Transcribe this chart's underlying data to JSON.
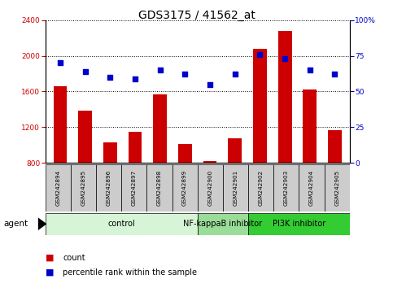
{
  "title": "GDS3175 / 41562_at",
  "samples": [
    "GSM242894",
    "GSM242895",
    "GSM242896",
    "GSM242897",
    "GSM242898",
    "GSM242899",
    "GSM242900",
    "GSM242901",
    "GSM242902",
    "GSM242903",
    "GSM242904",
    "GSM242905"
  ],
  "counts": [
    1660,
    1380,
    1030,
    1150,
    1570,
    1010,
    820,
    1070,
    2080,
    2280,
    1620,
    1165
  ],
  "percentiles": [
    70,
    64,
    60,
    59,
    65,
    62,
    55,
    62,
    76,
    73,
    65,
    62
  ],
  "bar_color": "#cc0000",
  "dot_color": "#0000cc",
  "ylim_left": [
    800,
    2400
  ],
  "ylim_right": [
    0,
    100
  ],
  "yticks_left": [
    800,
    1200,
    1600,
    2000,
    2400
  ],
  "yticks_right": [
    0,
    25,
    50,
    75,
    100
  ],
  "yticklabels_right": [
    "0",
    "25",
    "50",
    "75",
    "100%"
  ],
  "groups": [
    {
      "label": "control",
      "start": 0,
      "end": 5,
      "color": "#d6f5d6"
    },
    {
      "label": "NF-kappaB inhibitor",
      "start": 6,
      "end": 7,
      "color": "#99dd99"
    },
    {
      "label": "PI3K inhibitor",
      "start": 8,
      "end": 11,
      "color": "#33cc33"
    }
  ],
  "agent_label": "agent",
  "legend_items": [
    {
      "label": "count",
      "color": "#cc0000"
    },
    {
      "label": "percentile rank within the sample",
      "color": "#0000cc"
    }
  ],
  "title_fontsize": 10,
  "tick_fontsize": 6.5,
  "label_fontsize": 7.5,
  "group_label_fontsize": 7
}
